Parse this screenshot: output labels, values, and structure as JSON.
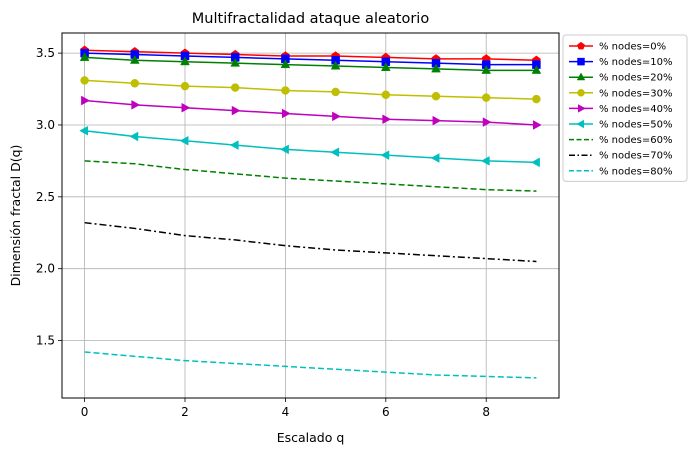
{
  "chart_data": {
    "type": "line",
    "title": "Multifractalidad ataque aleatorio",
    "xlabel": "Escalado q",
    "ylabel": "Dimensión fractal D(q)",
    "xlim": [
      -0.45,
      9.45
    ],
    "ylim": [
      1.1,
      3.64
    ],
    "xticks": [
      0,
      2,
      4,
      6,
      8
    ],
    "yticks": [
      1.5,
      2.0,
      2.5,
      3.0,
      3.5
    ],
    "xtick_labels": [
      "0",
      "2",
      "4",
      "6",
      "8"
    ],
    "ytick_labels": [
      "1.5",
      "2.0",
      "2.5",
      "3.0",
      "3.5"
    ],
    "grid": true,
    "legend_position": "outside-right-top",
    "x": [
      0,
      1,
      2,
      3,
      4,
      5,
      6,
      7,
      8,
      9
    ],
    "series": [
      {
        "name": "% nodes=0%",
        "color": "#ff0000",
        "marker": "pentagon",
        "line": "solid",
        "values": [
          3.52,
          3.51,
          3.5,
          3.49,
          3.48,
          3.48,
          3.47,
          3.46,
          3.46,
          3.45
        ]
      },
      {
        "name": "% nodes=10%",
        "color": "#0000ff",
        "marker": "square",
        "line": "solid",
        "values": [
          3.5,
          3.49,
          3.48,
          3.47,
          3.46,
          3.45,
          3.44,
          3.43,
          3.42,
          3.42
        ]
      },
      {
        "name": "% nodes=20%",
        "color": "#008000",
        "marker": "triangle-up",
        "line": "solid",
        "values": [
          3.47,
          3.45,
          3.44,
          3.43,
          3.42,
          3.41,
          3.4,
          3.39,
          3.38,
          3.38
        ]
      },
      {
        "name": "% nodes=30%",
        "color": "#bfbf00",
        "marker": "circle",
        "line": "solid",
        "values": [
          3.31,
          3.29,
          3.27,
          3.26,
          3.24,
          3.23,
          3.21,
          3.2,
          3.19,
          3.18
        ]
      },
      {
        "name": "% nodes=40%",
        "color": "#bf00bf",
        "marker": "triangle-right",
        "line": "solid",
        "values": [
          3.17,
          3.14,
          3.12,
          3.1,
          3.08,
          3.06,
          3.04,
          3.03,
          3.02,
          3.0
        ]
      },
      {
        "name": "% nodes=50%",
        "color": "#00bfbf",
        "marker": "triangle-left",
        "line": "solid",
        "values": [
          2.96,
          2.92,
          2.89,
          2.86,
          2.83,
          2.81,
          2.79,
          2.77,
          2.75,
          2.74
        ]
      },
      {
        "name": "% nodes=60%",
        "color": "#008000",
        "marker": "none",
        "line": "dashed",
        "values": [
          2.75,
          2.73,
          2.69,
          2.66,
          2.63,
          2.61,
          2.59,
          2.57,
          2.55,
          2.54
        ]
      },
      {
        "name": "% nodes=70%",
        "color": "#000000",
        "marker": "none",
        "line": "dashdot",
        "values": [
          2.32,
          2.28,
          2.23,
          2.2,
          2.16,
          2.13,
          2.11,
          2.09,
          2.07,
          2.05
        ]
      },
      {
        "name": "% nodes=80%",
        "color": "#00bfbf",
        "marker": "none",
        "line": "dashed",
        "values": [
          1.42,
          1.39,
          1.36,
          1.34,
          1.32,
          1.3,
          1.28,
          1.26,
          1.25,
          1.24
        ]
      }
    ]
  }
}
